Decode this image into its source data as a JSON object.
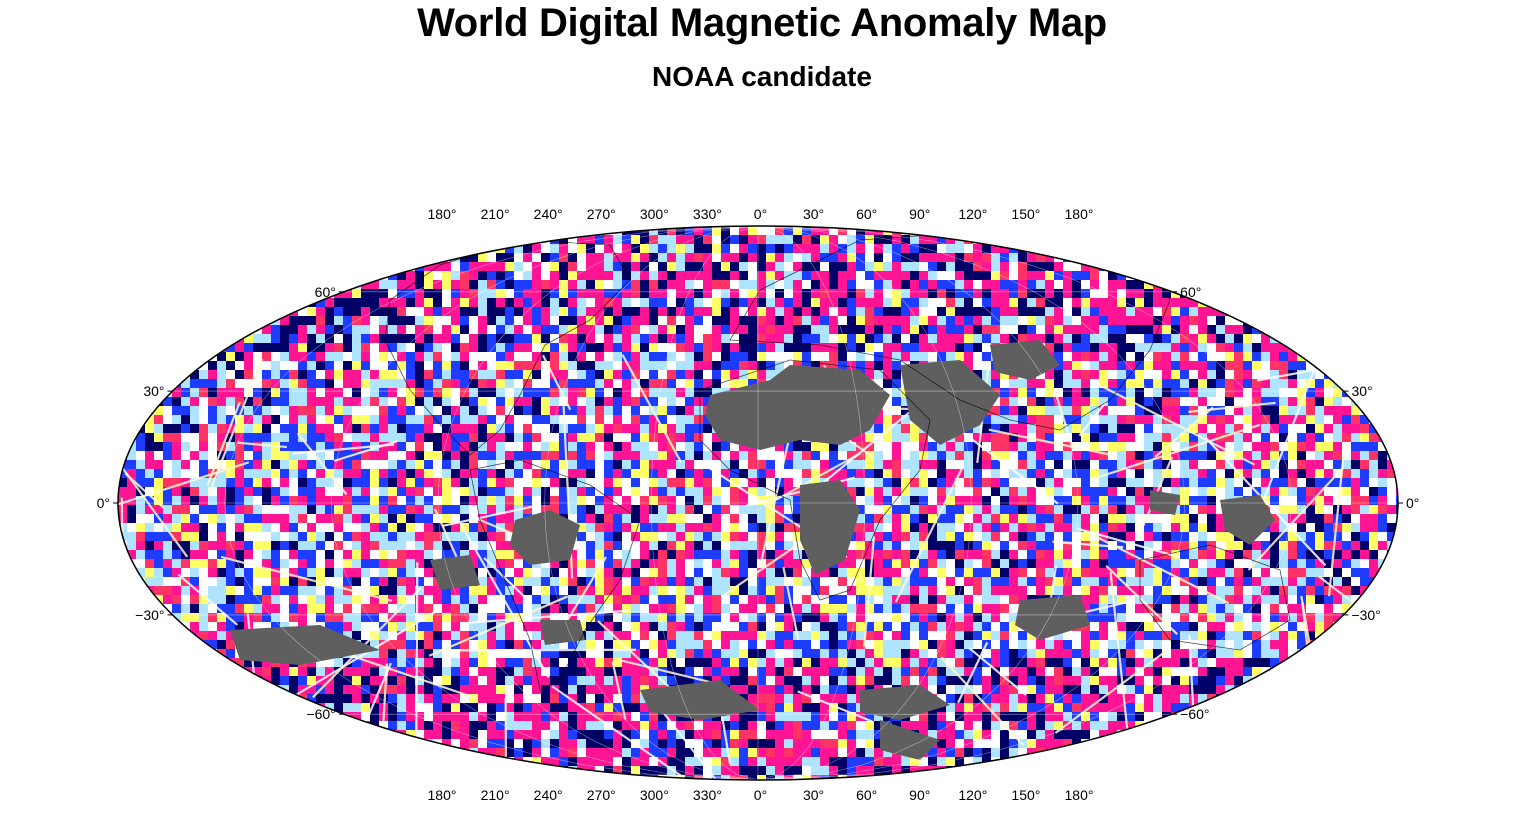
{
  "title": "World Digital Magnetic Anomaly Map",
  "subtitle": "NOAA candidate",
  "map": {
    "projection": "Mollweide",
    "longitude_labels": [
      "180°",
      "210°",
      "240°",
      "270°",
      "300°",
      "330°",
      "0°",
      "30°",
      "60°",
      "90°",
      "120°",
      "150°",
      "180°"
    ],
    "latitude_labels_left": [
      "60°",
      "30°",
      "0°",
      "−30°",
      "−60°"
    ],
    "latitude_labels_right": [
      "60°",
      "30°",
      "0°",
      "−30°",
      "−60°"
    ],
    "longitude_values": [
      180,
      210,
      240,
      270,
      300,
      330,
      0,
      30,
      60,
      90,
      120,
      150,
      180
    ],
    "latitude_values": [
      60,
      30,
      0,
      -30,
      -60
    ],
    "colors": {
      "positive_strong": "#ff1493",
      "positive": "#ff3366",
      "positive_mild": "#ffff66",
      "neutral": "#ffffff",
      "negative_mild": "#aee4ff",
      "negative": "#1e3cff",
      "negative_strong": "#000066",
      "no_data": "#5f5f5f",
      "coastline": "#000000"
    }
  }
}
